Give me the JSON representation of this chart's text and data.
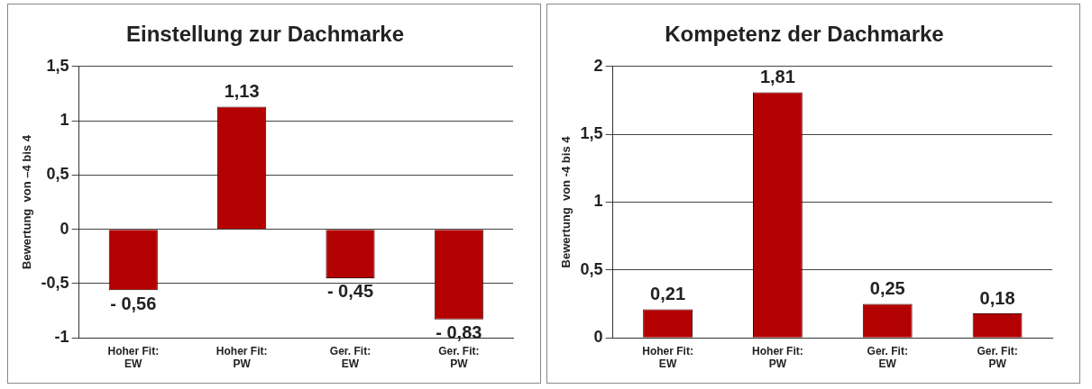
{
  "chart_data": [
    {
      "type": "bar",
      "title": "Einstellung zur Dachmarke",
      "ylabel": "Bewertung  von –4 bis 4",
      "categories": [
        "Hoher Fit: EW",
        "Hoher Fit: PW",
        "Ger. Fit: EW",
        "Ger. Fit: PW"
      ],
      "values": [
        -0.56,
        1.13,
        -0.45,
        -0.83
      ],
      "color": "#b30000",
      "value_labels": [
        "- 0,56",
        "1,13",
        "- 0,45",
        "- 0,83"
      ],
      "ylim": [
        -1,
        1.5
      ],
      "yticks": [
        {
          "value": -1,
          "label": "-1"
        },
        {
          "value": -0.5,
          "label": "-0,5"
        },
        0,
        {
          "value": 0.5,
          "label": "0,5"
        },
        1,
        {
          "value": 1.5,
          "label": "1,5"
        }
      ],
      "grid": "y",
      "legend": false
    },
    {
      "type": "bar",
      "title": "Kompetenz der Dachmarke",
      "ylabel": "Bewertung  von -4 bis 4",
      "categories": [
        "Hoher Fit: EW",
        "Hoher Fit: PW",
        "Ger. Fit: EW",
        "Ger. Fit: PW"
      ],
      "values": [
        0.21,
        1.81,
        0.25,
        0.18
      ],
      "color": "#b30000",
      "value_labels": [
        "0,21",
        "1,81",
        "0,25",
        "0,18"
      ],
      "ylim": [
        0,
        2
      ],
      "yticks": [
        0,
        {
          "value": 0.5,
          "label": "0,5"
        },
        1,
        {
          "value": 1.5,
          "label": "1,5"
        },
        2
      ],
      "grid": "y",
      "legend": false
    }
  ]
}
